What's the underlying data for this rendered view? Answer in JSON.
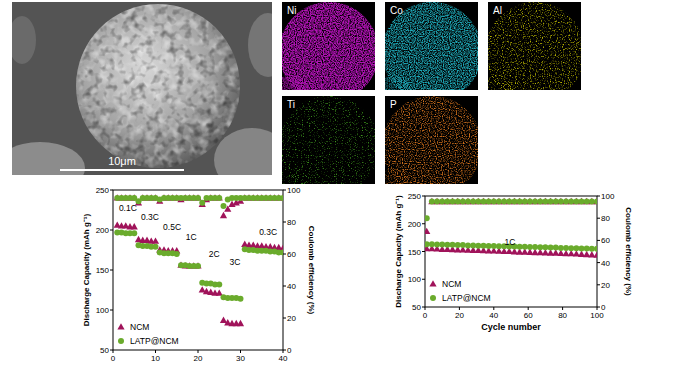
{
  "chart_data": [
    {
      "type": "scatter",
      "ylabel": "Discharge Capacity (mAh g⁻¹)",
      "y2label": "Coulomb efficiency (%)",
      "xlim": [
        0,
        40
      ],
      "xticks": [
        0,
        10,
        20,
        30,
        40
      ],
      "ylim": [
        50,
        250
      ],
      "yticks": [
        50,
        100,
        150,
        200,
        250
      ],
      "y2lim": [
        0,
        100
      ],
      "y2ticks": [
        0,
        20,
        40,
        60,
        80,
        100
      ],
      "legend": "lower left",
      "x": [
        1,
        2,
        3,
        4,
        5,
        6,
        7,
        8,
        9,
        10,
        11,
        12,
        13,
        14,
        15,
        16,
        17,
        18,
        19,
        20,
        21,
        22,
        23,
        24,
        25,
        26,
        27,
        28,
        29,
        30,
        31,
        32,
        33,
        34,
        35,
        36,
        37,
        38,
        39,
        40
      ],
      "series": [
        {
          "name": "NCM",
          "color": "#a0135a",
          "marker": "triangle",
          "values": [
            206,
            205,
            205,
            204,
            204,
            188,
            187,
            187,
            186,
            186,
            175,
            175,
            174,
            174,
            174,
            156,
            155,
            155,
            155,
            155,
            125,
            123,
            122,
            121,
            121,
            87,
            84,
            83,
            83,
            83,
            182,
            181,
            181,
            180,
            180,
            179,
            179,
            178,
            178,
            177
          ]
        },
        {
          "name": "LATP@NCM",
          "color": "#6aab2c",
          "marker": "circle",
          "values": [
            197,
            197,
            196,
            196,
            196,
            181,
            180,
            180,
            179,
            179,
            172,
            171,
            171,
            171,
            170,
            156,
            156,
            155,
            155,
            155,
            134,
            133,
            133,
            132,
            132,
            116,
            115,
            115,
            115,
            114,
            176,
            175,
            175,
            174,
            174,
            174,
            173,
            173,
            172,
            172
          ]
        },
        {
          "name": "NCM",
          "color": "#a0135a",
          "marker": "triangle",
          "axis": "y2",
          "values": [
            95,
            95,
            95,
            95,
            95,
            92,
            95,
            95,
            95,
            95,
            93,
            95,
            95,
            95,
            95,
            94,
            95,
            95,
            95,
            95,
            91,
            94,
            95,
            95,
            95,
            84,
            88,
            91,
            92,
            93,
            95,
            95,
            95,
            95,
            95,
            95,
            95,
            95,
            95,
            95
          ]
        },
        {
          "name": "LATP@NCM",
          "color": "#6aab2c",
          "marker": "circle",
          "axis": "y2",
          "values": [
            95,
            95,
            95,
            95,
            95,
            93,
            95,
            95,
            95,
            95,
            94,
            95,
            95,
            95,
            95,
            95,
            95,
            95,
            95,
            95,
            92,
            95,
            95,
            95,
            95,
            90,
            94,
            95,
            95,
            95,
            95,
            95,
            95,
            95,
            95,
            95,
            95,
            95,
            95,
            95
          ]
        }
      ],
      "annotations": [
        {
          "text": "0.1C",
          "x": 3.5,
          "y": 227
        },
        {
          "text": "0.3C",
          "x": 8.7,
          "y": 216
        },
        {
          "text": "0.5C",
          "x": 13.9,
          "y": 204
        },
        {
          "text": "1C",
          "x": 18.4,
          "y": 191
        },
        {
          "text": "2C",
          "x": 23.8,
          "y": 170
        },
        {
          "text": "3C",
          "x": 28.7,
          "y": 160
        },
        {
          "text": "0.3C",
          "x": 36.5,
          "y": 197
        }
      ]
    },
    {
      "type": "scatter",
      "xlabel": "Cycle number",
      "ylabel": "Discharge Capacity (mAh g⁻¹)",
      "y2label": "Coulomb efficiency (%)",
      "xlim": [
        0,
        100
      ],
      "xticks": [
        0,
        20,
        40,
        60,
        80,
        100
      ],
      "ylim": [
        50,
        250
      ],
      "yticks": [
        50,
        100,
        150,
        200,
        250
      ],
      "y2lim": [
        0,
        100
      ],
      "y2ticks": [
        0,
        20,
        40,
        60,
        80,
        100
      ],
      "legend": "lower left",
      "x": [
        1,
        4,
        7,
        10,
        13,
        16,
        19,
        22,
        25,
        28,
        31,
        34,
        37,
        40,
        43,
        46,
        49,
        52,
        55,
        58,
        61,
        64,
        67,
        70,
        73,
        76,
        79,
        82,
        85,
        88,
        91,
        94,
        97,
        100
      ],
      "series": [
        {
          "name": "NCM",
          "color": "#a0135a",
          "marker": "triangle",
          "values": [
            155,
            155,
            154.5,
            154,
            154,
            153.5,
            153,
            153,
            152.5,
            152,
            152,
            151.5,
            151,
            151,
            150.5,
            150,
            150,
            149.5,
            149,
            149,
            148.5,
            148,
            148,
            147.5,
            147,
            147,
            146.5,
            146,
            146,
            145.5,
            145,
            144.5,
            144,
            143.5
          ]
        },
        {
          "name": "LATP@NCM",
          "color": "#6aab2c",
          "marker": "circle",
          "values": [
            163,
            163,
            162.5,
            162.5,
            162,
            162,
            161.5,
            161.5,
            161,
            161,
            160.5,
            160.5,
            160,
            160,
            159.5,
            159.5,
            159,
            159,
            158.5,
            158.5,
            158,
            158,
            157.5,
            157.5,
            157,
            157,
            156.5,
            156.5,
            156,
            156,
            155.5,
            155.5,
            155,
            155
          ]
        },
        {
          "name": "NCM",
          "color": "#a0135a",
          "marker": "triangle",
          "axis": "y2",
          "values": [
            68,
            95,
            95,
            95,
            95,
            95,
            95,
            95,
            95,
            95,
            95,
            95,
            95,
            95,
            95,
            95,
            95,
            95,
            95,
            95,
            95,
            95,
            95,
            95,
            95,
            95,
            95,
            95,
            95,
            95,
            95,
            95,
            95,
            95
          ]
        },
        {
          "name": "LATP@NCM",
          "color": "#6aab2c",
          "marker": "circle",
          "axis": "y2",
          "values": [
            80,
            95,
            95,
            95,
            95,
            95,
            95,
            95,
            95,
            95,
            95,
            95,
            95,
            95,
            95,
            95,
            95,
            95,
            95,
            95,
            95,
            95,
            95,
            95,
            95,
            95,
            95,
            95,
            95,
            95,
            95,
            95,
            95,
            95
          ]
        }
      ],
      "annotations": [
        {
          "text": "1C",
          "x": 49.4,
          "y": 167
        }
      ]
    }
  ],
  "sem_image": {
    "scale_bar": "10μm"
  },
  "eds_maps": [
    {
      "label": "Ni",
      "color": "#b012b4"
    },
    {
      "label": "Co",
      "color": "#1fa9b8"
    },
    {
      "label": "Al",
      "color": "#b8b400"
    },
    {
      "label": "Ti",
      "color": "#3f9a1e"
    },
    {
      "label": "P",
      "color": "#d0701c"
    }
  ]
}
